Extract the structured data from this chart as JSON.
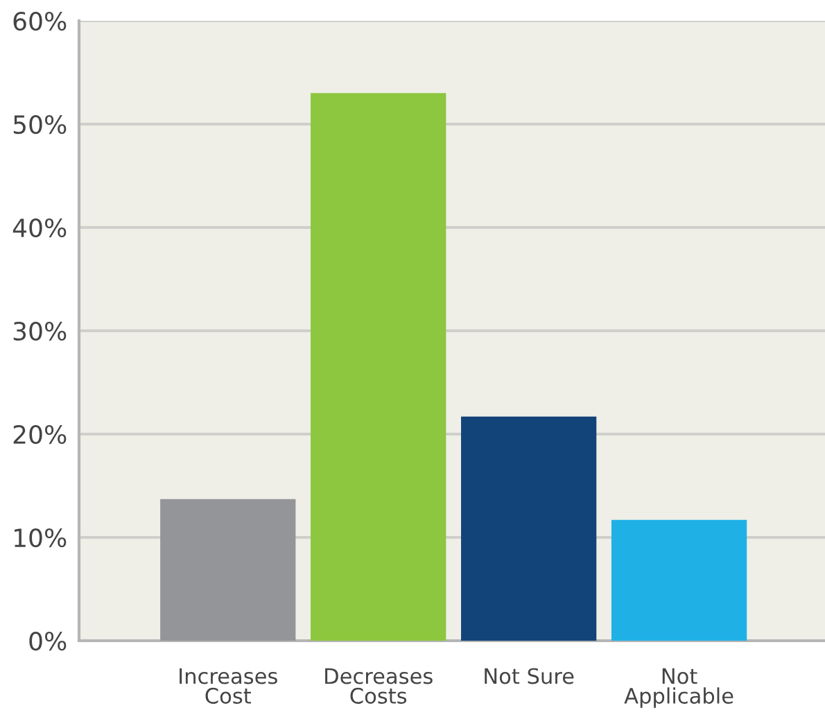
{
  "chart_data": {
    "type": "bar",
    "categories": [
      "Increases\nCost",
      "Decreases\nCosts",
      "Not Sure",
      "Not\nApplicable"
    ],
    "values": [
      13.7,
      53,
      21.7,
      11.7
    ],
    "colors": [
      "#939598",
      "#8dc63f",
      "#134479",
      "#1fb1e6"
    ],
    "ylim": [
      0,
      60
    ],
    "yticks": [
      {
        "value": 0,
        "label": "0%"
      },
      {
        "value": 10,
        "label": "10%"
      },
      {
        "value": 20,
        "label": "20%"
      },
      {
        "value": 30,
        "label": "30%"
      },
      {
        "value": 40,
        "label": "40%"
      },
      {
        "value": 50,
        "label": "50%"
      },
      {
        "value": 60,
        "label": "60%"
      }
    ],
    "grid": "y"
  }
}
